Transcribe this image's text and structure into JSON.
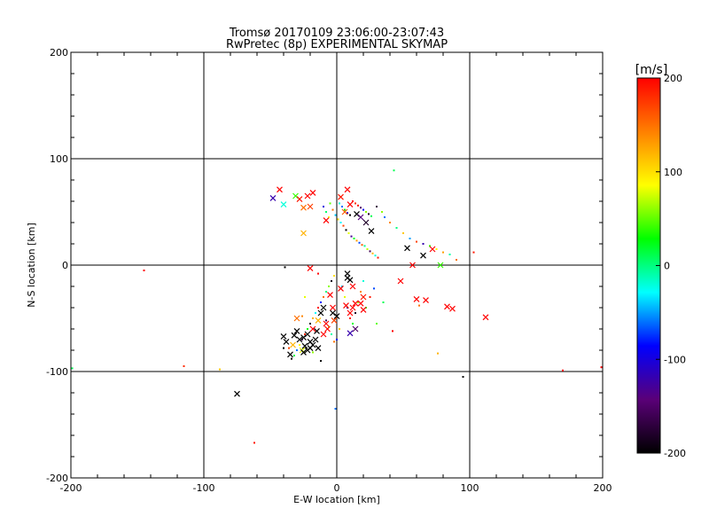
{
  "chart_data": {
    "type": "scatter",
    "title": "Tromsø 20170109 23:06:00-23:07:43",
    "subtitle": "RwPretec (8p) EXPERIMENTAL SKYMAP",
    "xlabel": "E-W location [km]",
    "ylabel": "N-S location [km]",
    "xlim": [
      -200,
      200
    ],
    "ylim": [
      -200,
      200
    ],
    "xticks": [
      "-200",
      "-100",
      "0",
      "100",
      "200"
    ],
    "yticks": [
      "-200",
      "-100",
      "0",
      "100",
      "200"
    ],
    "grid": true,
    "colorbar": {
      "label": "[m/s]",
      "range": [
        -200,
        200
      ],
      "ticks": [
        "-200",
        "-100",
        "0",
        "100",
        "200"
      ],
      "colors": [
        "#000000",
        "#5a0078",
        "#0000ff",
        "#00ffff",
        "#00ff00",
        "#ffff00",
        "#ff8000",
        "#ff0000"
      ]
    },
    "series": [
      {
        "name": "dot",
        "points": [
          [
            -145,
            -5,
            200
          ],
          [
            -115,
            -95,
            180
          ],
          [
            -88,
            -98,
            110
          ],
          [
            -62,
            -167,
            190
          ],
          [
            170,
            -99,
            200
          ],
          [
            199,
            -96,
            200
          ],
          [
            -199,
            -97,
            10
          ],
          [
            43,
            89,
            10
          ],
          [
            95,
            -105,
            -200
          ],
          [
            -1,
            -135,
            -60
          ],
          [
            103,
            12,
            190
          ],
          [
            -39,
            -2,
            -200
          ],
          [
            2,
            58,
            -20
          ],
          [
            4,
            55,
            -60
          ],
          [
            6,
            52,
            30
          ],
          [
            8,
            49,
            -110
          ],
          [
            10,
            47,
            -200
          ],
          [
            12,
            60,
            200
          ],
          [
            14,
            58,
            180
          ],
          [
            16,
            56,
            190
          ],
          [
            18,
            54,
            -150
          ],
          [
            20,
            52,
            -90
          ],
          [
            22,
            50,
            60
          ],
          [
            24,
            48,
            -180
          ],
          [
            26,
            46,
            10
          ],
          [
            -5,
            58,
            50
          ],
          [
            -3,
            52,
            150
          ],
          [
            -1,
            47,
            -40
          ],
          [
            1,
            43,
            100
          ],
          [
            3,
            40,
            -30
          ],
          [
            5,
            37,
            170
          ],
          [
            7,
            33,
            -200
          ],
          [
            9,
            30,
            80
          ],
          [
            11,
            27,
            -130
          ],
          [
            13,
            25,
            20
          ],
          [
            15,
            23,
            130
          ],
          [
            17,
            21,
            -70
          ],
          [
            19,
            19,
            160
          ],
          [
            21,
            18,
            -5
          ],
          [
            23,
            15,
            70
          ],
          [
            25,
            13,
            -160
          ],
          [
            27,
            11,
            120
          ],
          [
            29,
            9,
            -20
          ],
          [
            31,
            7,
            190
          ],
          [
            -10,
            55,
            -100
          ],
          [
            -8,
            50,
            5
          ],
          [
            -6,
            45,
            90
          ],
          [
            30,
            55,
            -170
          ],
          [
            34,
            50,
            60
          ],
          [
            36,
            45,
            -60
          ],
          [
            40,
            40,
            140
          ],
          [
            45,
            35,
            0
          ],
          [
            50,
            30,
            110
          ],
          [
            55,
            25,
            -50
          ],
          [
            60,
            22,
            170
          ],
          [
            65,
            20,
            -120
          ],
          [
            70,
            18,
            40
          ],
          [
            75,
            15,
            90
          ],
          [
            80,
            12,
            130
          ],
          [
            85,
            10,
            -10
          ],
          [
            90,
            5,
            150
          ],
          [
            -2,
            -10,
            100
          ],
          [
            -4,
            -15,
            -190
          ],
          [
            -6,
            -20,
            60
          ],
          [
            -8,
            -25,
            0
          ],
          [
            -10,
            -30,
            150
          ],
          [
            -12,
            -35,
            -80
          ],
          [
            -14,
            -40,
            200
          ],
          [
            -16,
            -45,
            -30
          ],
          [
            -18,
            -50,
            120
          ],
          [
            -20,
            -55,
            -200
          ],
          [
            -22,
            -60,
            30
          ],
          [
            -24,
            -65,
            180
          ],
          [
            -26,
            -70,
            -150
          ],
          [
            -28,
            -75,
            90
          ],
          [
            -30,
            -80,
            -60
          ],
          [
            -32,
            -85,
            10
          ],
          [
            -34,
            -88,
            -200
          ],
          [
            -36,
            -78,
            170
          ],
          [
            4,
            -20,
            -40
          ],
          [
            6,
            -30,
            80
          ],
          [
            8,
            -40,
            -130
          ],
          [
            10,
            -50,
            190
          ],
          [
            12,
            -55,
            20
          ],
          [
            14,
            -45,
            -180
          ],
          [
            16,
            -35,
            60
          ],
          [
            18,
            -25,
            140
          ],
          [
            20,
            -15,
            -20
          ],
          [
            2,
            -60,
            110
          ],
          [
            0,
            -70,
            -90
          ],
          [
            -2,
            -72,
            150
          ],
          [
            -4,
            -65,
            -10
          ],
          [
            -6,
            -58,
            70
          ],
          [
            -8,
            -52,
            -160
          ],
          [
            22,
            -40,
            40
          ],
          [
            25,
            -30,
            190
          ],
          [
            28,
            -22,
            -70
          ],
          [
            35,
            -35,
            10
          ],
          [
            42,
            -62,
            200
          ],
          [
            76,
            -83,
            120
          ],
          [
            62,
            -38,
            150
          ],
          [
            -26,
            -48,
            140
          ],
          [
            -24,
            -30,
            80
          ],
          [
            -14,
            -8,
            200
          ],
          [
            -18,
            -82,
            60
          ],
          [
            -12,
            -90,
            -200
          ],
          [
            -40,
            -78,
            -200
          ],
          [
            8,
            -12,
            -110
          ],
          [
            30,
            -55,
            50
          ]
        ]
      },
      {
        "name": "cross",
        "points": [
          [
            -43,
            71,
            200
          ],
          [
            -48,
            63,
            -120
          ],
          [
            -40,
            57,
            -20
          ],
          [
            -31,
            65,
            40
          ],
          [
            -28,
            62,
            190
          ],
          [
            -25,
            54,
            150
          ],
          [
            -20,
            55,
            170
          ],
          [
            -22,
            65,
            200
          ],
          [
            -18,
            68,
            200
          ],
          [
            8,
            71,
            200
          ],
          [
            3,
            64,
            190
          ],
          [
            10,
            57,
            200
          ],
          [
            6,
            50,
            160
          ],
          [
            15,
            48,
            -200
          ],
          [
            18,
            45,
            -140
          ],
          [
            22,
            40,
            -180
          ],
          [
            26,
            32,
            -200
          ],
          [
            -8,
            42,
            200
          ],
          [
            -25,
            30,
            120
          ],
          [
            53,
            16,
            -200
          ],
          [
            65,
            9,
            -200
          ],
          [
            72,
            15,
            200
          ],
          [
            57,
            0,
            200
          ],
          [
            78,
            0,
            40
          ],
          [
            -20,
            -3,
            200
          ],
          [
            8,
            -8,
            -200
          ],
          [
            12,
            -20,
            200
          ],
          [
            48,
            -15,
            200
          ],
          [
            60,
            -32,
            200
          ],
          [
            67,
            -33,
            200
          ],
          [
            83,
            -39,
            200
          ],
          [
            87,
            -41,
            200
          ],
          [
            112,
            -49,
            200
          ],
          [
            -75,
            -121,
            -200
          ],
          [
            8,
            -12,
            -200
          ],
          [
            10,
            -14,
            -200
          ],
          [
            -3,
            -40,
            200
          ],
          [
            -3,
            -45,
            -200
          ],
          [
            0,
            -48,
            -200
          ],
          [
            -10,
            -40,
            -200
          ],
          [
            -12,
            -45,
            -200
          ],
          [
            -14,
            -52,
            120
          ],
          [
            -8,
            -55,
            200
          ],
          [
            -18,
            -60,
            200
          ],
          [
            -15,
            -62,
            -200
          ],
          [
            -22,
            -65,
            -200
          ],
          [
            -25,
            -68,
            -200
          ],
          [
            -28,
            -70,
            -200
          ],
          [
            -30,
            -62,
            -200
          ],
          [
            -32,
            -66,
            -200
          ],
          [
            -20,
            -72,
            -200
          ],
          [
            -18,
            -75,
            -200
          ],
          [
            -16,
            -70,
            -200
          ],
          [
            -24,
            -76,
            -200
          ],
          [
            -26,
            -80,
            80
          ],
          [
            -33,
            -75,
            120
          ],
          [
            -35,
            -84,
            -200
          ],
          [
            -14,
            -78,
            -200
          ],
          [
            -40,
            -67,
            -200
          ],
          [
            -38,
            -72,
            -200
          ],
          [
            -25,
            -82,
            -200
          ],
          [
            -22,
            -80,
            -200
          ],
          [
            -20,
            -78,
            -200
          ],
          [
            -10,
            -65,
            200
          ],
          [
            -7,
            -60,
            200
          ],
          [
            -30,
            -50,
            150
          ],
          [
            12,
            -40,
            200
          ],
          [
            14,
            -36,
            200
          ],
          [
            18,
            -36,
            200
          ],
          [
            20,
            -42,
            200
          ],
          [
            10,
            -45,
            200
          ],
          [
            7,
            -38,
            200
          ],
          [
            -5,
            -28,
            200
          ],
          [
            20,
            -30,
            190
          ],
          [
            3,
            -22,
            200
          ],
          [
            -2,
            -52,
            170
          ],
          [
            14,
            -60,
            -150
          ],
          [
            10,
            -64,
            -120
          ]
        ]
      }
    ]
  }
}
